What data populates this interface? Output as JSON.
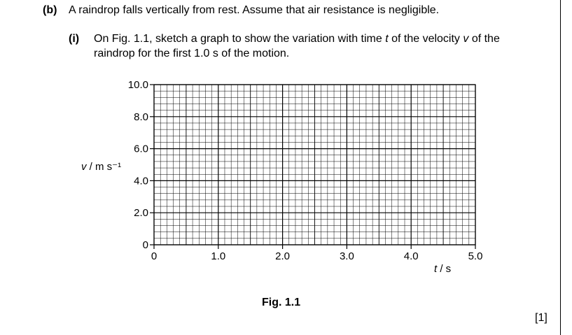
{
  "part_b": {
    "label": "(b)",
    "text": "A raindrop falls vertically from rest. Assume that air resistance is negligible."
  },
  "part_i": {
    "label": "(i)",
    "line1_pre": "On Fig. 1.1, sketch a graph to show the variation with time ",
    "t_symbol": "t",
    "line1_mid": " of the velocity ",
    "v_symbol": "v",
    "line1_post": " of the",
    "line2": "raindrop for the first 1.0 s of the motion."
  },
  "chart_data": {
    "type": "line",
    "series": [],
    "xlim": [
      0,
      5.0
    ],
    "ylim": [
      0,
      10.0
    ],
    "x_ticks": [
      "0",
      "1.0",
      "2.0",
      "3.0",
      "4.0",
      "5.0"
    ],
    "y_ticks": [
      "0",
      "2.0",
      "4.0",
      "6.0",
      "8.0",
      "10.0"
    ],
    "xlabel": "t / s",
    "ylabel": "v / m s⁻¹",
    "grid": true
  },
  "figure_caption": "Fig. 1.1",
  "marks": "[1]"
}
